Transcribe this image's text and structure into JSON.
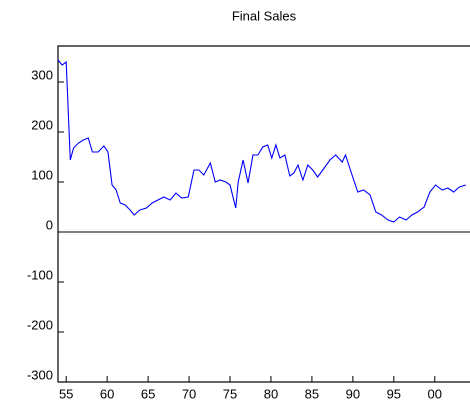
{
  "chart_data": {
    "type": "line",
    "title": "Final Sales",
    "x": [
      1954.0,
      1954.5,
      1955.0,
      1955.5,
      1955.9,
      1956.5,
      1957.1,
      1957.7,
      1958.2,
      1958.9,
      1959.6,
      1960.1,
      1960.6,
      1961.1,
      1961.6,
      1962.2,
      1962.8,
      1963.3,
      1964.0,
      1964.8,
      1965.5,
      1966.2,
      1966.9,
      1967.7,
      1968.4,
      1969.1,
      1969.9,
      1970.6,
      1971.2,
      1971.8,
      1972.6,
      1973.2,
      1973.8,
      1974.5,
      1975.0,
      1975.7,
      1976.0,
      1976.6,
      1977.2,
      1977.8,
      1978.4,
      1979.0,
      1979.6,
      1980.1,
      1980.6,
      1981.1,
      1981.7,
      1982.3,
      1982.8,
      1983.3,
      1983.9,
      1984.5,
      1985.1,
      1985.7,
      1986.5,
      1987.2,
      1987.9,
      1988.7,
      1989.1,
      1989.9,
      1990.6,
      1991.3,
      1992.1,
      1992.8,
      1993.5,
      1994.3,
      1995.0,
      1995.7,
      1996.5,
      1997.2,
      1997.9,
      1998.7,
      1999.4,
      2000.1,
      2000.9,
      2001.6,
      2002.3,
      2003.0,
      2003.8
    ],
    "series": [
      {
        "name": "Final Sales",
        "color": "#0000ff",
        "values": [
          344,
          334,
          340,
          144,
          168,
          178,
          184,
          188,
          160,
          160,
          172,
          160,
          94,
          84,
          58,
          54,
          44,
          34,
          44,
          48,
          58,
          64,
          70,
          64,
          78,
          68,
          70,
          124,
          124,
          114,
          138,
          100,
          104,
          100,
          94,
          48,
          100,
          144,
          98,
          154,
          154,
          170,
          174,
          148,
          174,
          148,
          154,
          112,
          118,
          134,
          104,
          134,
          124,
          110,
          128,
          144,
          154,
          140,
          154,
          114,
          80,
          84,
          74,
          40,
          34,
          24,
          20,
          30,
          24,
          34,
          40,
          50,
          80,
          94,
          84,
          88,
          80,
          90,
          94
        ]
      }
    ],
    "xlim": [
      1954.0,
      2004.3
    ],
    "xticks": [
      {
        "value": 1955,
        "label": "55"
      },
      {
        "value": 1960,
        "label": "60"
      },
      {
        "value": 1965,
        "label": "65"
      },
      {
        "value": 1970,
        "label": "70"
      },
      {
        "value": 1975,
        "label": "75"
      },
      {
        "value": 1980,
        "label": "80"
      },
      {
        "value": 1985,
        "label": "85"
      },
      {
        "value": 1990,
        "label": "90"
      },
      {
        "value": 1995,
        "label": "95"
      },
      {
        "value": 2000,
        "label": "00"
      }
    ],
    "ylim": [
      -300,
      372
    ],
    "yticks": [
      -300,
      -200,
      -100,
      0,
      100,
      200,
      300
    ],
    "zero_line": true
  }
}
